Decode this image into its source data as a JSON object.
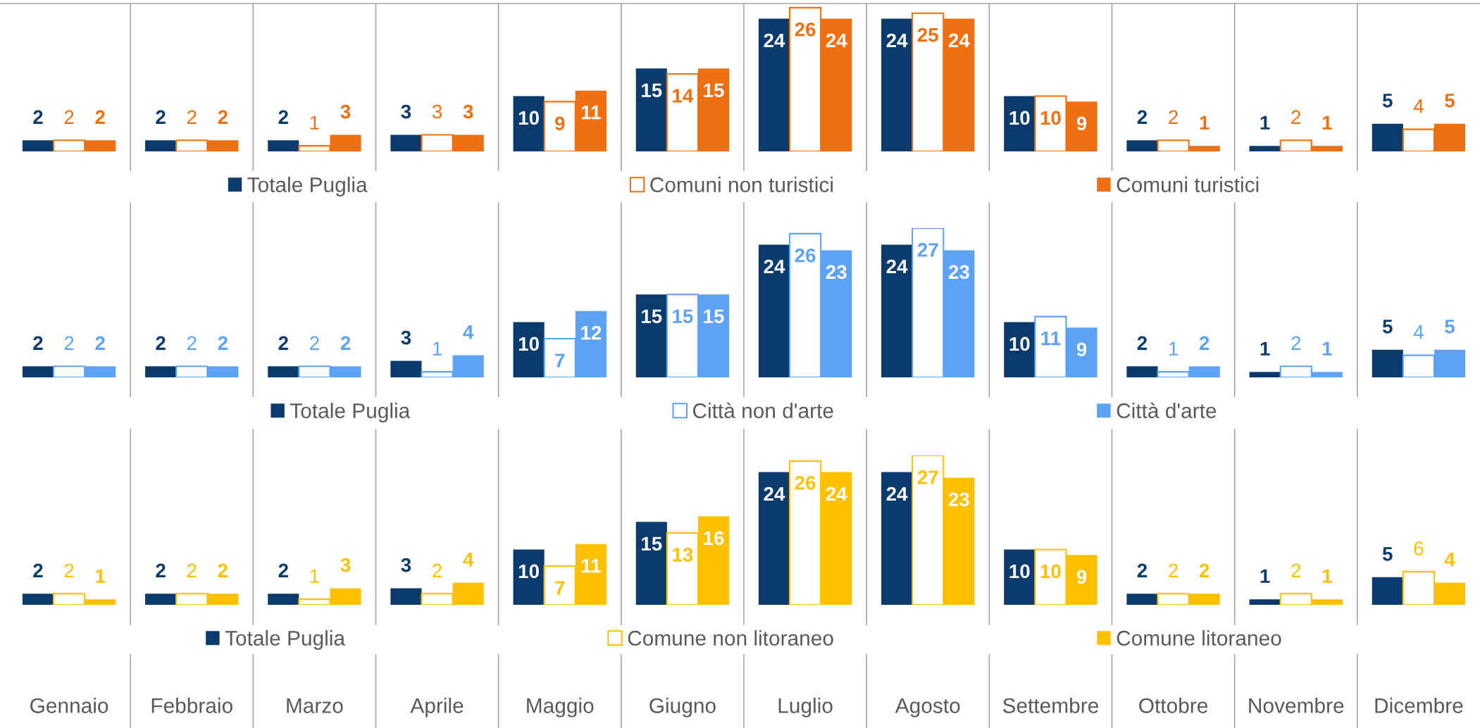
{
  "chart_data": [
    {
      "type": "bar",
      "categories": [
        "Gennaio",
        "Febbraio",
        "Marzo",
        "Aprile",
        "Maggio",
        "Giugno",
        "Luglio",
        "Agosto",
        "Settembre",
        "Ottobre",
        "Novembre",
        "Dicembre"
      ],
      "series": [
        {
          "name": "Totale Puglia",
          "color": "#0b3a6d",
          "values": [
            2,
            2,
            2,
            3,
            10,
            15,
            24,
            24,
            10,
            2,
            1,
            5
          ]
        },
        {
          "name": "Comuni non turistici",
          "color": "#f06f10",
          "values": [
            2,
            2,
            1,
            3,
            9,
            14,
            26,
            25,
            10,
            2,
            2,
            4
          ]
        },
        {
          "name": "Comuni turistici",
          "color": "#f06f10",
          "values": [
            2,
            2,
            3,
            3,
            11,
            15,
            24,
            24,
            9,
            1,
            1,
            5
          ]
        }
      ],
      "data_labels": true,
      "legend": "bottom",
      "grid": "x",
      "tick_labels": false
    },
    {
      "type": "bar",
      "categories": [
        "Gennaio",
        "Febbraio",
        "Marzo",
        "Aprile",
        "Maggio",
        "Giugno",
        "Luglio",
        "Agosto",
        "Settembre",
        "Ottobre",
        "Novembre",
        "Dicembre"
      ],
      "series": [
        {
          "name": "Totale Puglia",
          "color": "#0b3a6d",
          "values": [
            2,
            2,
            2,
            3,
            10,
            15,
            24,
            24,
            10,
            2,
            1,
            5
          ]
        },
        {
          "name": "Città non d'arte",
          "color": "#5ea3f3",
          "values": [
            2,
            2,
            2,
            1,
            7,
            15,
            26,
            27,
            11,
            1,
            2,
            4
          ]
        },
        {
          "name": "Città d'arte",
          "color": "#5ea3f3",
          "values": [
            2,
            2,
            2,
            4,
            12,
            15,
            23,
            23,
            9,
            2,
            1,
            5
          ]
        }
      ],
      "data_labels": true,
      "legend": "bottom",
      "grid": "x",
      "tick_labels": false
    },
    {
      "type": "bar",
      "categories": [
        "Gennaio",
        "Febbraio",
        "Marzo",
        "Aprile",
        "Maggio",
        "Giugno",
        "Luglio",
        "Agosto",
        "Settembre",
        "Ottobre",
        "Novembre",
        "Dicembre"
      ],
      "series": [
        {
          "name": "Totale Puglia",
          "color": "#0b3a6d",
          "values": [
            2,
            2,
            2,
            3,
            10,
            15,
            24,
            24,
            10,
            2,
            1,
            5
          ]
        },
        {
          "name": "Comune non litoraneo",
          "color": "#ffc000",
          "values": [
            2,
            2,
            1,
            2,
            7,
            13,
            26,
            27,
            10,
            2,
            2,
            6
          ]
        },
        {
          "name": "Comune litoraneo",
          "color": "#ffc000",
          "values": [
            1,
            2,
            3,
            4,
            11,
            16,
            24,
            23,
            9,
            2,
            1,
            4
          ]
        }
      ],
      "data_labels": true,
      "legend": "bottom",
      "grid": "x",
      "tick_labels": "x"
    }
  ]
}
